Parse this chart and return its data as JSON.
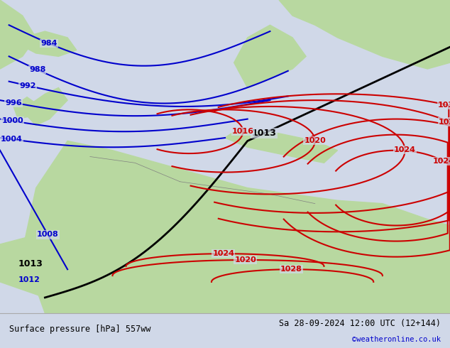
{
  "title_left": "Surface pressure [hPa] 557ww",
  "title_right": "Sa 28-09-2024 12:00 UTC (12+144)",
  "credit": "©weatheronline.co.uk",
  "bg_color": "#d0d8e8",
  "land_color": "#b8d8a0",
  "border_color": "#808080",
  "blue_contour_color": "#0000cc",
  "red_contour_color": "#cc0000",
  "black_contour_color": "#000000",
  "bottom_bar_color": "#ffffff",
  "bottom_bar_height": 0.1,
  "fig_width": 6.34,
  "fig_height": 4.9,
  "dpi": 100
}
